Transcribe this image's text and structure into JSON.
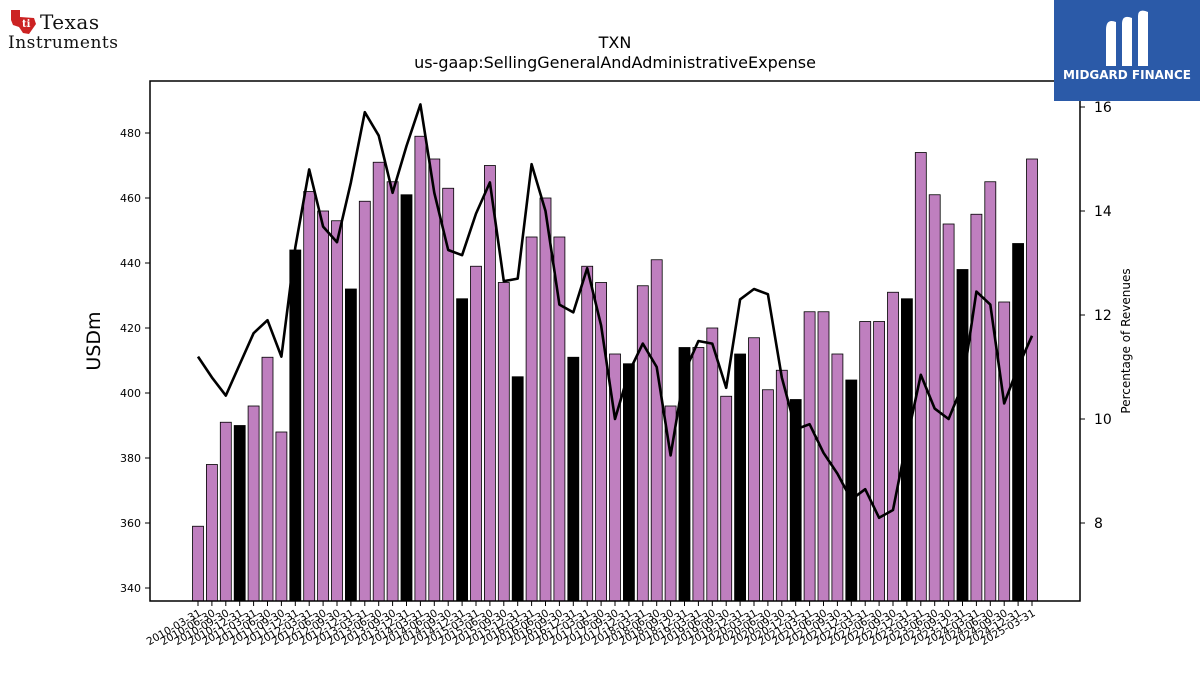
{
  "branding": {
    "left_logo_line1": "Texas",
    "left_logo_line2": "Instruments",
    "right_logo_text": "MIDGARD FINANCE",
    "right_logo_bg": "#2b5aa8",
    "left_logo_icon": "texas-state-icon",
    "right_logo_icon": "midgard-m-icon"
  },
  "chart_data": {
    "type": "bar",
    "title": "TXN",
    "subtitle": "us-gaap:SellingGeneralAndAdministrativeExpense",
    "ylabel": "USDm",
    "y2label": "Percentage of Revenues",
    "ylim": [
      336,
      496
    ],
    "y2lim": [
      6.5,
      16.5
    ],
    "yticks": [
      340,
      360,
      380,
      400,
      420,
      440,
      460,
      480
    ],
    "y2ticks": [
      8,
      10,
      12,
      14,
      16
    ],
    "bar_color": "#bf7fbf",
    "highlight_color": "#000000",
    "line_color": "#000000",
    "categories": [
      "2010-03-31",
      "2010-06-30",
      "2010-09-30",
      "2010-12-31",
      "2011-03-31",
      "2011-06-30",
      "2011-09-30",
      "2011-12-31",
      "2012-03-31",
      "2012-06-30",
      "2012-09-30",
      "2012-12-31",
      "2013-03-31",
      "2013-06-30",
      "2013-09-30",
      "2013-12-31",
      "2014-03-31",
      "2014-06-30",
      "2014-09-30",
      "2014-12-31",
      "2015-03-31",
      "2015-06-30",
      "2015-09-30",
      "2015-12-31",
      "2016-03-31",
      "2016-06-30",
      "2016-09-30",
      "2016-12-31",
      "2017-03-31",
      "2017-06-30",
      "2017-09-30",
      "2017-12-31",
      "2018-03-31",
      "2018-06-30",
      "2018-09-30",
      "2018-12-31",
      "2019-03-31",
      "2019-06-30",
      "2019-09-30",
      "2019-12-31",
      "2020-03-31",
      "2020-06-30",
      "2020-09-30",
      "2020-12-31",
      "2021-03-31",
      "2021-06-30",
      "2021-09-30",
      "2021-12-31",
      "2022-03-31",
      "2022-06-30",
      "2022-09-30",
      "2022-12-31",
      "2023-03-31",
      "2023-06-30",
      "2023-09-30",
      "2023-12-31",
      "2024-03-31",
      "2024-06-30",
      "2024-09-30",
      "2024-12-31",
      "2025-03-31"
    ],
    "tick_labels": [
      "2010-03-31",
      "2010-06-30",
      "2010-09-30",
      "2010-12-31",
      "2011-03-31",
      "2011-06-30",
      "2011-09-30",
      "2011-12-31",
      "2012-03-31",
      "2012-06-30",
      "2012-09-30",
      "2012-12-31",
      "2013-03-31",
      "2013-06-30",
      "2013-09-30",
      "2013-12-31",
      "2014-03-31",
      "2014-06-30",
      "2014-09-30",
      "2014-12-31",
      "2015-03-31",
      "2015-06-30",
      "2015-09-30",
      "2015-12-31",
      "2016-03-31",
      "2016-06-30",
      "2016-09-30",
      "2016-12-31",
      "2017-03-31",
      "2017-06-30",
      "2017-09-30",
      "2017-12-31",
      "2018-03-31",
      "2018-06-30",
      "2018-09-30",
      "2018-12-31",
      "2019-03-31",
      "2019-06-30",
      "2019-09-30",
      "2019-12-31",
      "2020-03-31",
      "2020-06-30",
      "2020-09-30",
      "2020-12-31",
      "2021-03-31",
      "2021-06-30",
      "2021-09-30",
      "2021-12-31",
      "2022-03-31",
      "2022-06-30",
      "2022-09-30",
      "2022-12-31",
      "2023-03-31",
      "2023-06-30",
      "2023-09-30",
      "2023-12-31",
      "2024-03-31",
      "2024-06-30",
      "2024-09-30",
      "2024-12-31",
      "2025-03-31"
    ],
    "values": [
      359,
      378,
      391,
      390,
      396,
      411,
      388,
      444,
      462,
      456,
      453,
      432,
      459,
      471,
      465,
      461,
      479,
      472,
      463,
      429,
      439,
      470,
      434,
      405,
      448,
      460,
      448,
      411,
      439,
      434,
      412,
      409,
      433,
      441,
      396,
      414,
      414,
      420,
      399,
      412,
      417,
      401,
      407,
      398,
      425,
      425,
      412,
      404,
      422,
      422,
      431,
      429,
      474,
      461,
      452,
      438,
      455,
      465,
      428,
      446,
      472
    ],
    "highlight": [
      false,
      false,
      false,
      true,
      false,
      false,
      false,
      true,
      false,
      false,
      false,
      true,
      false,
      false,
      false,
      true,
      false,
      false,
      false,
      true,
      false,
      false,
      false,
      true,
      false,
      false,
      false,
      true,
      false,
      false,
      false,
      true,
      false,
      false,
      false,
      true,
      false,
      false,
      false,
      true,
      false,
      false,
      false,
      true,
      false,
      false,
      false,
      true,
      false,
      false,
      false,
      true,
      false,
      false,
      false,
      true,
      false,
      false,
      false,
      true,
      false
    ],
    "pct_revenue": [
      11.2,
      10.8,
      10.45,
      11.05,
      11.65,
      11.9,
      11.2,
      13.3,
      14.8,
      13.7,
      13.4,
      14.55,
      15.9,
      15.45,
      14.35,
      15.25,
      16.05,
      14.35,
      13.25,
      13.15,
      13.95,
      14.55,
      12.65,
      12.7,
      14.9,
      14.0,
      12.2,
      12.05,
      12.9,
      11.8,
      10.0,
      10.9,
      11.45,
      11.0,
      9.3,
      10.9,
      11.5,
      11.45,
      10.6,
      12.3,
      12.5,
      12.4,
      10.8,
      9.8,
      9.9,
      9.35,
      8.95,
      8.45,
      8.65,
      8.1,
      8.25,
      9.6,
      10.85,
      10.2,
      10.0,
      10.65,
      12.45,
      12.2,
      10.3,
      11.0,
      11.6
    ]
  }
}
